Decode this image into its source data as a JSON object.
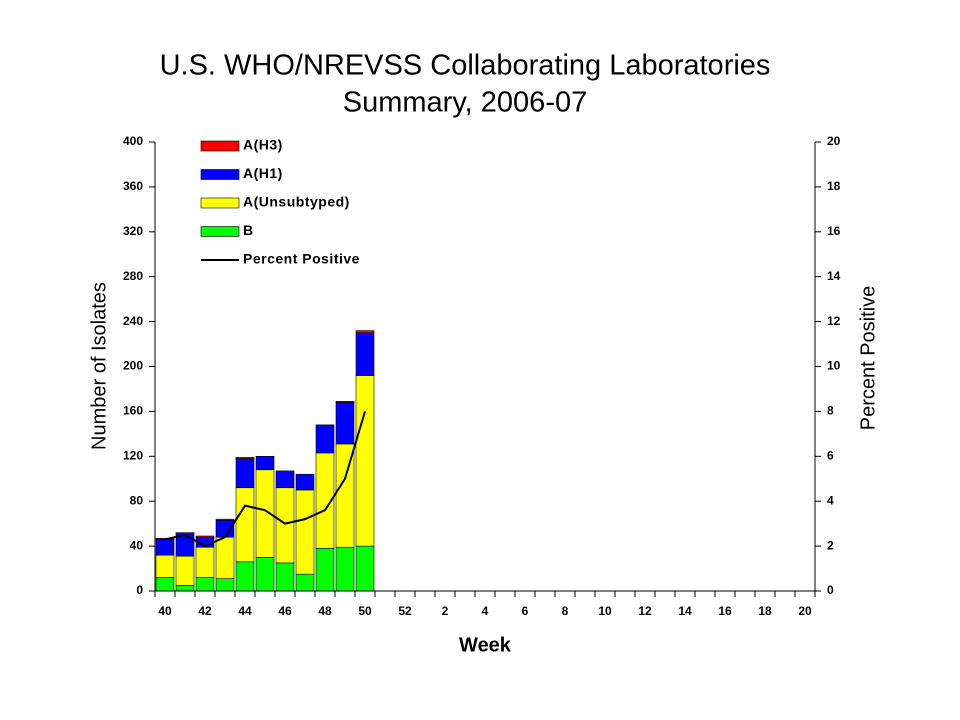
{
  "chart_data": {
    "type": "bar",
    "title": "U.S. WHO/NREVSS Collaborating Laboratories",
    "subtitle": "Summary, 2006-07",
    "x_label": "Week",
    "y_label": "Number of Isolates",
    "y2_label": "Percent Positive",
    "categories": [
      "40",
      null,
      "42",
      null,
      "44",
      null,
      "46",
      null,
      "48",
      null,
      "50",
      null,
      "52",
      null,
      "2",
      null,
      "4",
      null,
      "6",
      null,
      "8",
      null,
      "10",
      null,
      "12",
      null,
      "14",
      null,
      "16",
      null,
      "18",
      null,
      "20"
    ],
    "stacked": true,
    "legend": "upper left",
    "series": [
      {
        "name": "B",
        "color": "#00ff00",
        "values": [
          12,
          5,
          12,
          11,
          26,
          30,
          25,
          15,
          38,
          39,
          40,
          null,
          null,
          null,
          null,
          null,
          null,
          null,
          null,
          null,
          null,
          null,
          null,
          null,
          null,
          null,
          null,
          null,
          null,
          null,
          null,
          null,
          null
        ]
      },
      {
        "name": "A(Unsubtyped)",
        "color": "#ffff00",
        "values": [
          20,
          26,
          27,
          37,
          66,
          78,
          67,
          75,
          85,
          92,
          152,
          null,
          null,
          null,
          null,
          null,
          null,
          null,
          null,
          null,
          null,
          null,
          null,
          null,
          null,
          null,
          null,
          null,
          null,
          null,
          null,
          null,
          null
        ]
      },
      {
        "name": "A(H1)",
        "color": "#0000ff",
        "values": [
          14,
          20,
          9,
          15,
          26,
          12,
          15,
          14,
          25,
          37,
          38,
          null,
          null,
          null,
          null,
          null,
          null,
          null,
          null,
          null,
          null,
          null,
          null,
          null,
          null,
          null,
          null,
          null,
          null,
          null,
          null,
          null,
          null
        ]
      },
      {
        "name": "A(H3)",
        "color": "#ff0000",
        "values": [
          1,
          1,
          1,
          1,
          1,
          0,
          0,
          0,
          0,
          1,
          2,
          null,
          null,
          null,
          null,
          null,
          null,
          null,
          null,
          null,
          null,
          null,
          null,
          null,
          null,
          null,
          null,
          null,
          null,
          null,
          null,
          null,
          null
        ]
      },
      {
        "name": "Percent Positive",
        "type": "line",
        "axis": "y2",
        "color": "#000000",
        "values": [
          2.3,
          2.5,
          2.0,
          2.4,
          3.8,
          3.6,
          3.0,
          3.2,
          3.6,
          5.0,
          8.0,
          null,
          null,
          null,
          null,
          null,
          null,
          null,
          null,
          null,
          null,
          null,
          null,
          null,
          null,
          null,
          null,
          null,
          null,
          null,
          null,
          null,
          null
        ]
      }
    ],
    "ylim": [
      0,
      400
    ],
    "yticks": [
      0,
      40,
      80,
      120,
      160,
      200,
      240,
      280,
      320,
      360,
      400
    ],
    "y2lim": [
      0,
      20
    ],
    "y2ticks": [
      0,
      2,
      4,
      6,
      8,
      10,
      12,
      14,
      16,
      18,
      20
    ]
  }
}
